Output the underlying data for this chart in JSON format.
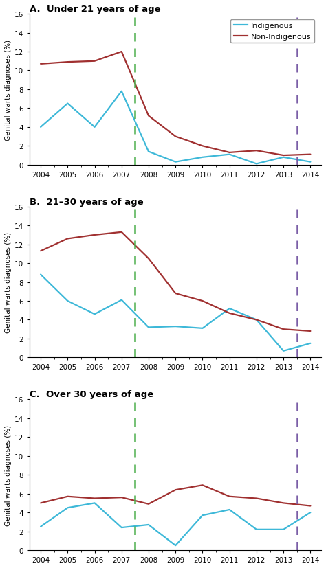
{
  "panels": [
    {
      "title": "A.  Under 21 years of age",
      "indigenous": [
        4.0,
        6.5,
        4.0,
        7.8,
        1.4,
        0.3,
        0.8,
        1.1,
        0.1,
        0.8,
        0.3
      ],
      "non_indigenous": [
        10.7,
        10.9,
        11.0,
        12.0,
        5.2,
        3.0,
        2.0,
        1.3,
        1.5,
        1.0,
        1.1
      ]
    },
    {
      "title": "B.  21–30 years of age",
      "indigenous": [
        8.8,
        6.0,
        4.6,
        6.1,
        3.2,
        3.3,
        3.1,
        5.2,
        4.0,
        0.7,
        1.5
      ],
      "non_indigenous": [
        11.3,
        12.6,
        13.0,
        13.3,
        10.5,
        6.8,
        6.0,
        4.7,
        4.0,
        3.0,
        2.8
      ]
    },
    {
      "title": "C.  Over 30 years of age",
      "indigenous": [
        2.5,
        4.5,
        5.0,
        2.4,
        2.7,
        0.5,
        3.7,
        4.3,
        2.2,
        2.2,
        4.0
      ],
      "non_indigenous": [
        5.0,
        5.7,
        5.5,
        5.6,
        4.9,
        6.4,
        6.9,
        5.7,
        5.5,
        5.0,
        4.7
      ]
    }
  ],
  "years": [
    2004,
    2005,
    2006,
    2007,
    2008,
    2009,
    2010,
    2011,
    2012,
    2013,
    2014
  ],
  "xlim": [
    2003.6,
    2014.4
  ],
  "ylim": [
    0,
    16
  ],
  "yticks": [
    0,
    2,
    4,
    6,
    8,
    10,
    12,
    14,
    16
  ],
  "xticks": [
    2004,
    2005,
    2006,
    2007,
    2008,
    2009,
    2010,
    2011,
    2012,
    2013,
    2014
  ],
  "green_vline": 2007.5,
  "purple_vline": 2013.5,
  "green_color": "#4cae4c",
  "purple_color": "#7b5ea7",
  "indigenous_color": "#3db8d8",
  "non_indigenous_color": "#a03030",
  "ylabel": "Genital warts diagnoses (%)",
  "linewidth": 1.6,
  "vline_lw": 1.8
}
